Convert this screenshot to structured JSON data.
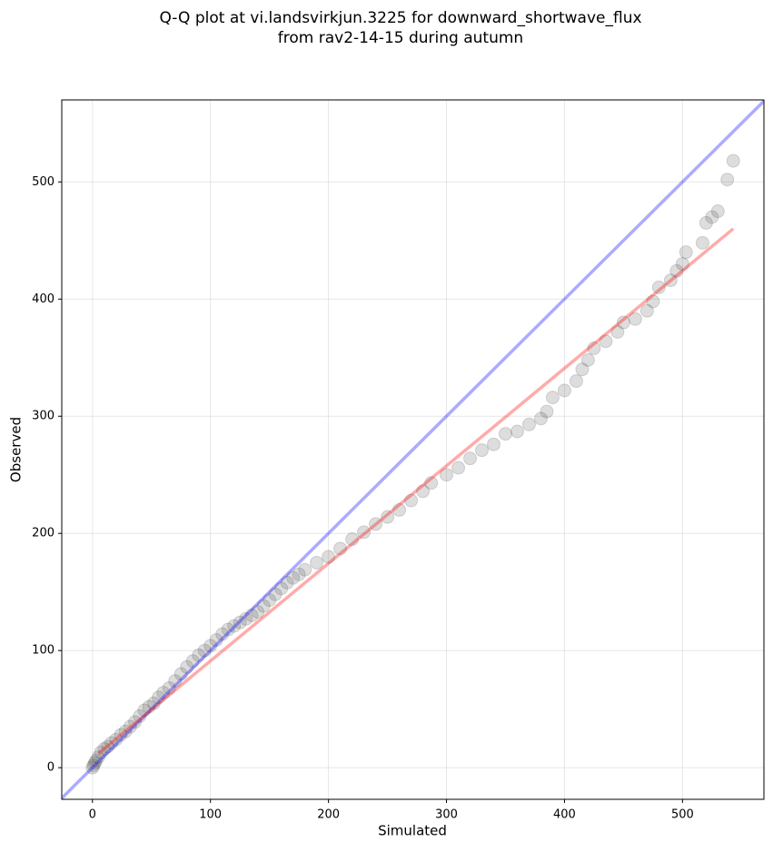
{
  "chart_data": {
    "type": "scatter",
    "title": "Q-Q plot at vi.landsvirkjun.3225 for downward_shortwave_flux",
    "subtitle": "from rav2-14-15 during autumn",
    "xlabel": "Simulated",
    "ylabel": "Observed",
    "xlim": [
      -26,
      569
    ],
    "ylim": [
      -27,
      570
    ],
    "xticks": [
      0,
      100,
      200,
      300,
      400,
      500
    ],
    "yticks": [
      0,
      100,
      200,
      300,
      400,
      500
    ],
    "grid": true,
    "points": {
      "color": "#444444",
      "x": [
        0,
        1,
        2,
        3,
        5,
        7,
        10,
        13,
        16,
        20,
        24,
        28,
        32,
        36,
        40,
        44,
        48,
        52,
        56,
        60,
        65,
        70,
        75,
        80,
        85,
        90,
        95,
        100,
        105,
        110,
        115,
        120,
        125,
        130,
        135,
        140,
        145,
        150,
        155,
        160,
        165,
        170,
        175,
        180,
        190,
        200,
        210,
        220,
        230,
        240,
        250,
        260,
        270,
        280,
        287,
        300,
        310,
        320,
        330,
        340,
        350,
        360,
        370,
        380,
        385,
        390,
        400,
        410,
        415,
        420,
        425,
        435,
        445,
        450,
        460,
        470,
        475,
        480,
        490,
        495,
        500,
        503,
        517,
        520,
        525,
        530,
        538,
        543
      ],
      "y": [
        0,
        2,
        4,
        6,
        9,
        13,
        16,
        18,
        21,
        24,
        28,
        31,
        35,
        39,
        44,
        49,
        52,
        55,
        60,
        64,
        68,
        74,
        80,
        86,
        91,
        96,
        100,
        104,
        109,
        114,
        118,
        121,
        124,
        127,
        130,
        133,
        138,
        143,
        148,
        153,
        158,
        162,
        165,
        169,
        175,
        180,
        187,
        195,
        201,
        208,
        214,
        220,
        228,
        236,
        243,
        250,
        256,
        264,
        271,
        276,
        285,
        287,
        293,
        298,
        304,
        316,
        322,
        330,
        340,
        348,
        358,
        364,
        372,
        380,
        383,
        390,
        398,
        410,
        416,
        424,
        430,
        440,
        448,
        465,
        470,
        475,
        502,
        518
      ]
    },
    "lines": [
      {
        "color": "#0000ff",
        "x": [
          -26,
          569
        ],
        "y": [
          -26,
          569
        ]
      },
      {
        "color": "#ff0000",
        "x": [
          5,
          543
        ],
        "y": [
          12,
          460
        ]
      }
    ]
  }
}
